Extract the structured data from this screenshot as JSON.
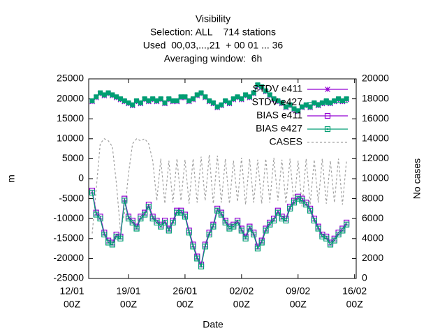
{
  "chart_data": {
    "type": "line",
    "title": "Visibility",
    "subtitles": [
      "Selection: ALL    714 stations",
      "Used  00,03,...,21  + 00 01 ... 36",
      "Averaging window:  6h"
    ],
    "xlabel": "Date",
    "ylabel": "m",
    "y2label": "No cases",
    "xlim": [
      2.07,
      35.2
    ],
    "xticks": [
      {
        "value": 0,
        "label": [
          "12/01",
          "00Z"
        ]
      },
      {
        "value": 7,
        "label": [
          "19/01",
          "00Z"
        ]
      },
      {
        "value": 14,
        "label": [
          "26/01",
          "00Z"
        ]
      },
      {
        "value": 21,
        "label": [
          "02/02",
          "00Z"
        ]
      },
      {
        "value": 28,
        "label": [
          "09/02",
          "00Z"
        ]
      },
      {
        "value": 35,
        "label": [
          "16/02",
          "00Z"
        ]
      }
    ],
    "ylim": [
      -25000,
      25000
    ],
    "yticks": [
      -25000,
      -20000,
      -15000,
      -10000,
      -5000,
      0,
      5000,
      10000,
      15000,
      20000,
      25000
    ],
    "y2lim": [
      0,
      20000
    ],
    "y2ticks": [
      0,
      2000,
      4000,
      6000,
      8000,
      10000,
      12000,
      14000,
      16000,
      18000,
      20000
    ],
    "legend": "top right",
    "x": [
      2.5,
      3,
      3.5,
      4,
      4.5,
      5,
      5.5,
      6,
      6.5,
      7,
      7.5,
      8,
      8.5,
      9,
      9.5,
      10,
      10.5,
      11,
      11.5,
      12,
      12.5,
      13,
      13.5,
      14,
      14.5,
      15,
      15.5,
      16,
      16.5,
      17,
      17.5,
      18,
      18.5,
      19,
      19.5,
      20,
      20.5,
      21,
      21.5,
      22,
      22.5,
      23,
      23.5,
      24,
      24.5,
      25,
      25.5,
      26,
      26.5,
      27,
      27.5,
      28,
      28.5,
      29,
      29.5,
      30,
      30.5,
      31,
      31.5,
      32,
      32.5,
      33,
      33.5,
      34
    ],
    "series": [
      {
        "name": "STDV e411",
        "color": "#9400d3",
        "marker": "star",
        "values": [
          19300,
          20300,
          21300,
          20800,
          21300,
          20800,
          20300,
          19800,
          19300,
          18800,
          18300,
          19300,
          18800,
          19800,
          19300,
          19800,
          19300,
          19800,
          18800,
          19800,
          19300,
          19300,
          20300,
          20300,
          19300,
          19800,
          20800,
          21300,
          20300,
          19300,
          18800,
          17800,
          18300,
          19300,
          18800,
          19800,
          20300,
          19800,
          20800,
          20300,
          21300,
          23300,
          22800,
          21800,
          20800,
          19800,
          19300,
          18800,
          17800,
          18300,
          17300,
          16800,
          17800,
          18300,
          17800,
          18800,
          18300,
          18800,
          19300,
          18800,
          19300,
          19800,
          19300,
          19800
        ]
      },
      {
        "name": "STDV e427",
        "color": "#009e73",
        "marker": "filled-square",
        "values": [
          19500,
          20500,
          21500,
          21000,
          21500,
          21000,
          20500,
          20000,
          19500,
          19000,
          18500,
          19500,
          19000,
          20000,
          19500,
          20000,
          19500,
          20000,
          19000,
          20000,
          19500,
          19500,
          20500,
          20500,
          19500,
          20000,
          21000,
          21500,
          20500,
          19500,
          19000,
          18000,
          18500,
          19500,
          19000,
          20000,
          20500,
          20000,
          21000,
          20500,
          21500,
          23500,
          23000,
          22000,
          21000,
          20000,
          19500,
          19000,
          18000,
          18500,
          17500,
          17000,
          18000,
          18500,
          18000,
          19000,
          18500,
          19000,
          19500,
          19000,
          19500,
          20000,
          19500,
          20000
        ]
      },
      {
        "name": "BIAS e411",
        "color": "#9400d3",
        "marker": "square",
        "values": [
          -3000,
          -8500,
          -9500,
          -13500,
          -15500,
          -16000,
          -14000,
          -14500,
          -5000,
          -9500,
          -10500,
          -12000,
          -9500,
          -8500,
          -6500,
          -9500,
          -10500,
          -11500,
          -10500,
          -12500,
          -10500,
          -8000,
          -8000,
          -9000,
          -13000,
          -16500,
          -19500,
          -21500,
          -16500,
          -13500,
          -11500,
          -7500,
          -8500,
          -10500,
          -12000,
          -11500,
          -10500,
          -12500,
          -14500,
          -12000,
          -13500,
          -17000,
          -15500,
          -12500,
          -11000,
          -10000,
          -8000,
          -9500,
          -10000,
          -7000,
          -5500,
          -4500,
          -5000,
          -6000,
          -7500,
          -10000,
          -12000,
          -14000,
          -14500,
          -16000,
          -15000,
          -13500,
          -12500,
          -11000
        ]
      },
      {
        "name": "BIAS e427",
        "color": "#009e73",
        "marker": "dot-square",
        "values": [
          -3500,
          -9000,
          -10000,
          -14000,
          -16000,
          -16500,
          -14500,
          -15000,
          -5500,
          -10000,
          -11000,
          -12500,
          -10000,
          -9000,
          -7000,
          -10000,
          -11000,
          -12000,
          -11000,
          -13000,
          -11000,
          -8500,
          -8500,
          -9500,
          -13500,
          -17000,
          -20000,
          -22000,
          -17000,
          -14000,
          -12000,
          -8000,
          -9000,
          -11000,
          -12500,
          -12000,
          -11000,
          -13000,
          -15000,
          -12500,
          -14000,
          -17500,
          -16000,
          -13000,
          -11500,
          -10500,
          -8500,
          -10000,
          -10500,
          -7500,
          -6000,
          -5000,
          -5500,
          -6500,
          -8000,
          -10500,
          -12500,
          -14500,
          -15000,
          -16500,
          -15500,
          -14000,
          -13000,
          -11500
        ]
      },
      {
        "name": "CASES",
        "color": "#a0a0a0",
        "marker": "none",
        "dashed": true,
        "axis": "y2",
        "values": [
          4500,
          9000,
          13500,
          14000,
          13800,
          13200,
          9500,
          4800,
          6500,
          10500,
          13500,
          14000,
          13800,
          14000,
          13500,
          11800,
          7800,
          12000,
          7500,
          11800,
          7600,
          12000,
          7800,
          11900,
          7500,
          12000,
          7600,
          12200,
          7800,
          12400,
          7500,
          12300,
          7600,
          12000,
          7500,
          11800,
          7700,
          12100,
          7400,
          12000,
          7600,
          11900,
          7500,
          12000,
          7600,
          12100,
          7800,
          11900,
          7500,
          12000,
          7300,
          11800,
          7200,
          12000,
          7400,
          11900,
          7600,
          12000,
          7500,
          11800,
          7600,
          12000,
          7400,
          11800
        ]
      }
    ]
  }
}
